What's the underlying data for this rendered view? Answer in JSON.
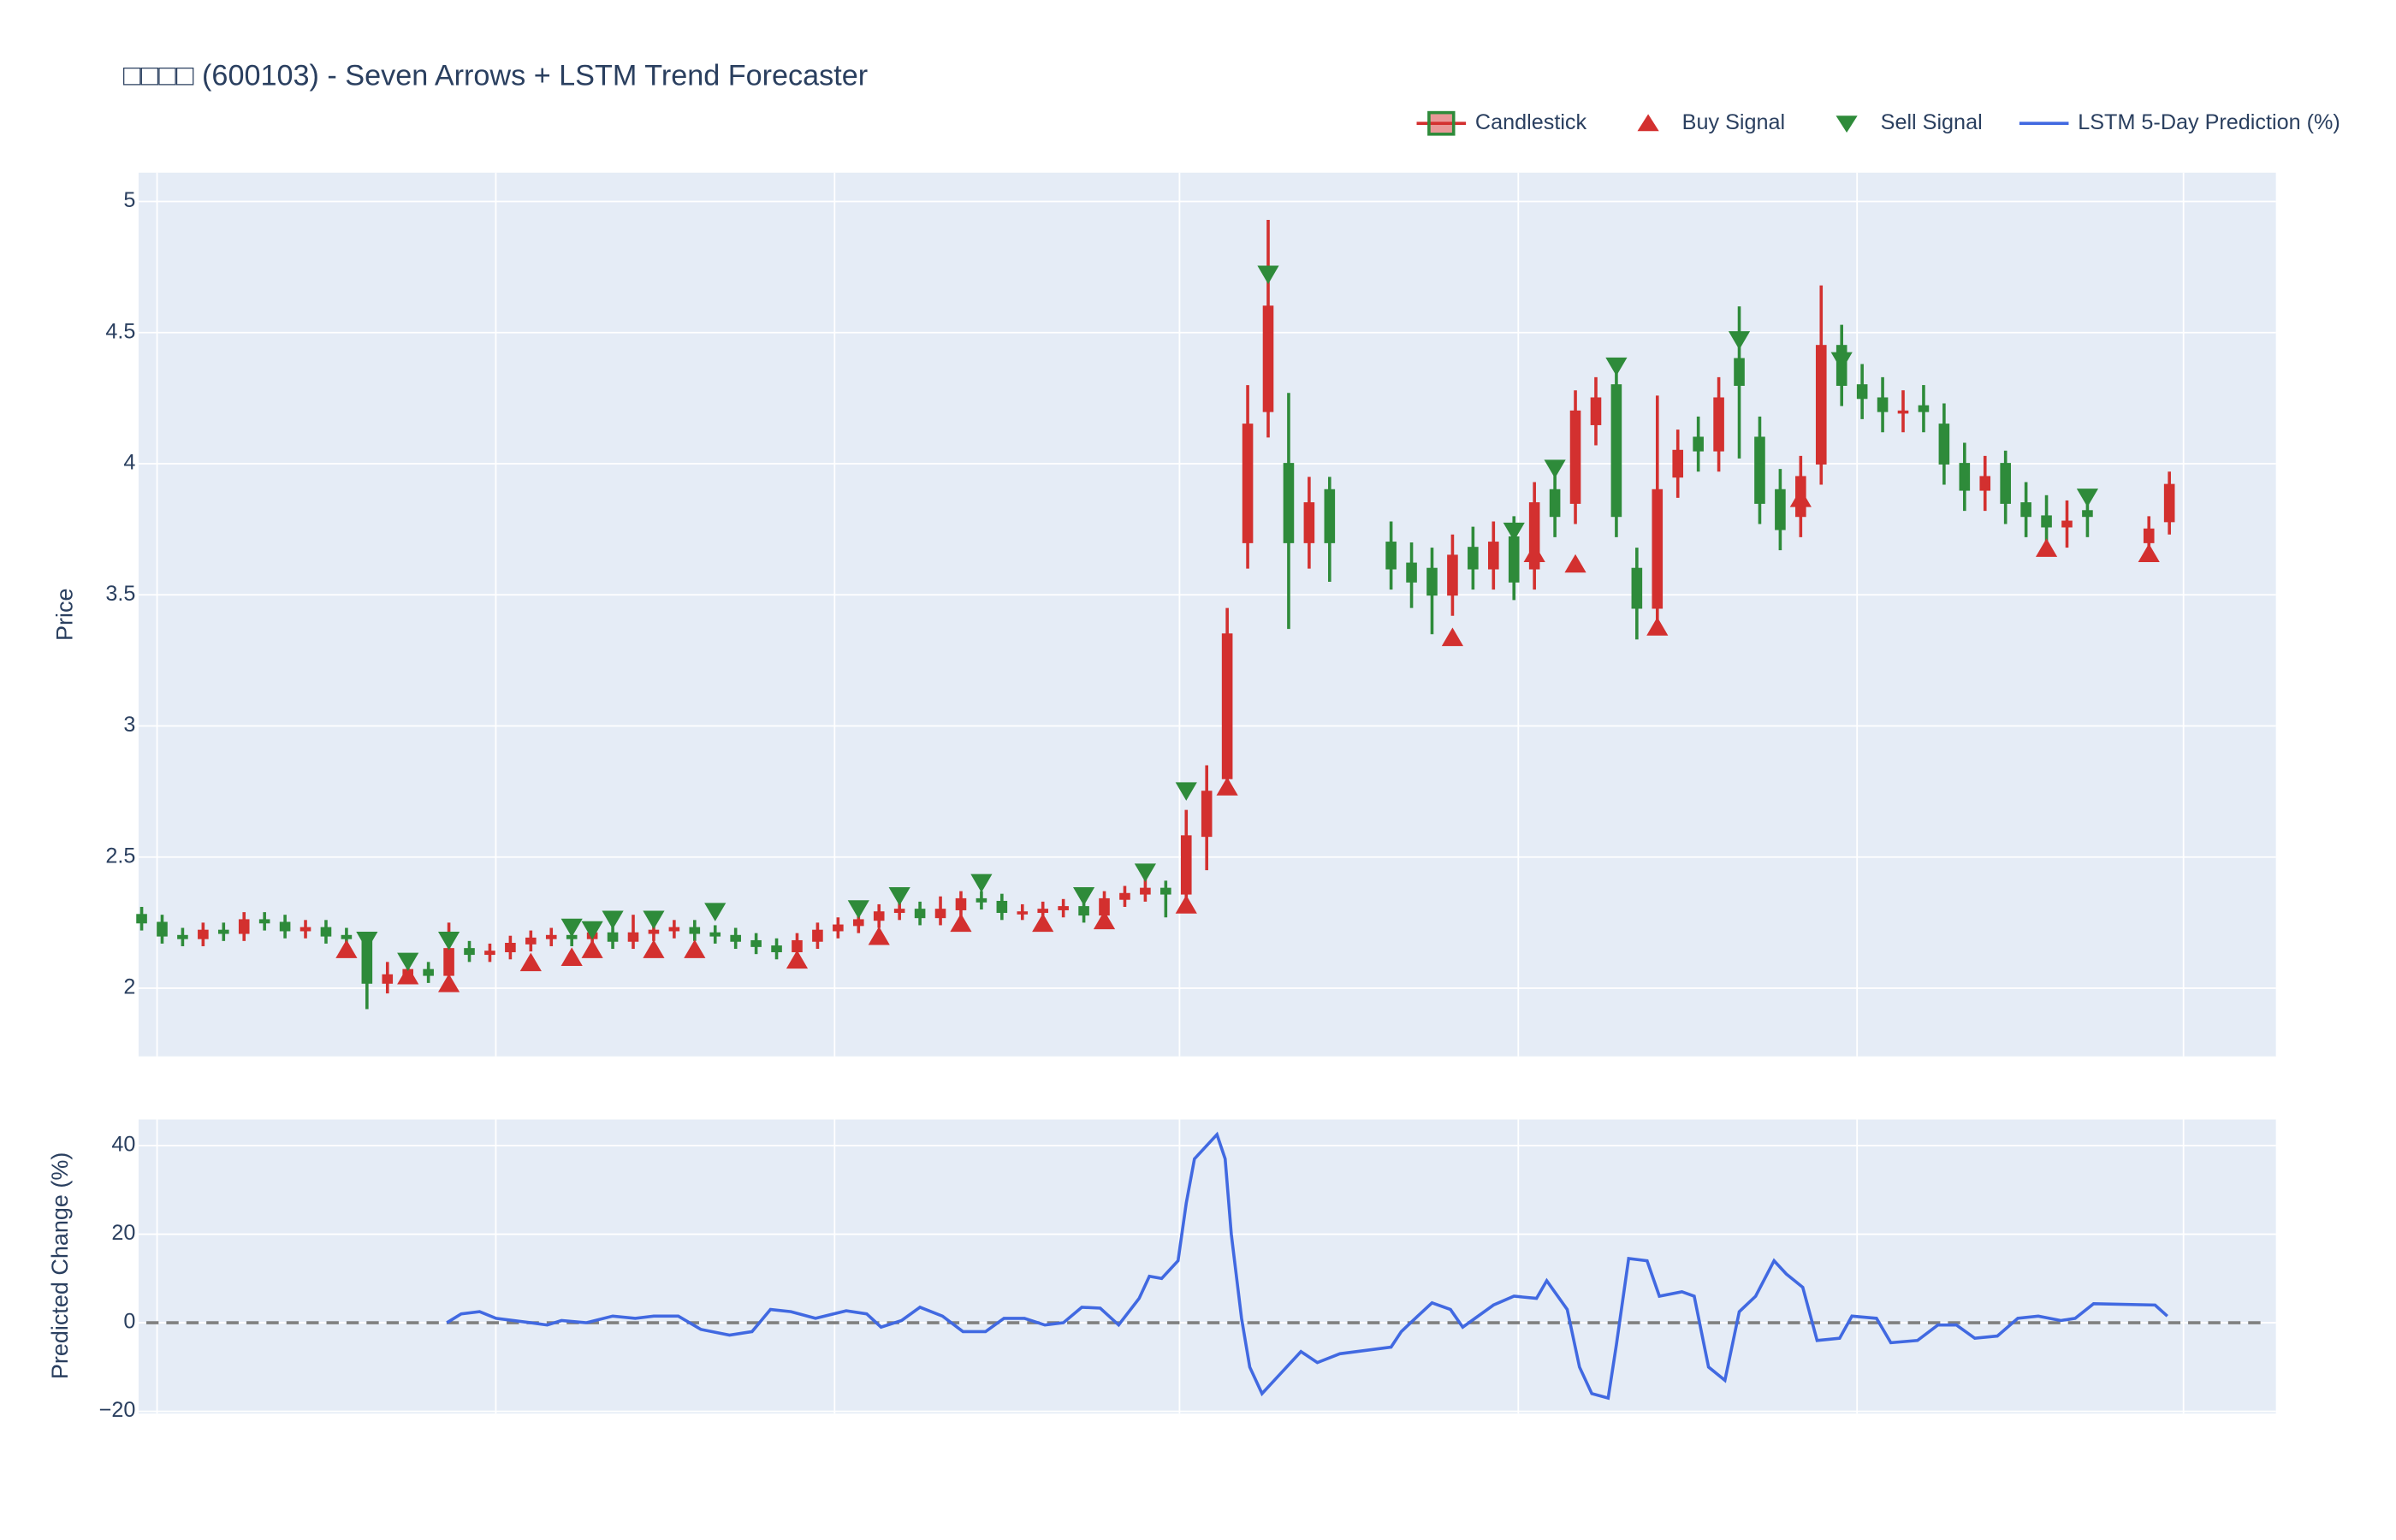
{
  "chart_data": [
    {
      "type": "candlestick",
      "title": "□□□□ (600103) - Seven Arrows + LSTM Trend Forecaster",
      "y_label": "Price",
      "name": "Candlestick",
      "increasing_color": "#d3302f",
      "decreasing_color": "#2e8b3a",
      "xlim": [
        -0.15,
        104.2
      ],
      "ylim": [
        1.74,
        5.11
      ],
      "yticks": [
        2,
        2.5,
        3,
        3.5,
        4,
        4.5,
        5
      ],
      "grid": true,
      "legend": "top-right",
      "open": [
        2.28,
        2.25,
        2.2,
        2.19,
        2.22,
        2.21,
        2.26,
        2.25,
        2.22,
        2.23,
        2.2,
        2.19,
        2.02,
        2.05,
        2.07,
        2.05,
        2.15,
        2.13,
        2.14,
        2.17,
        2.19,
        2.2,
        2.19,
        2.21,
        2.18,
        2.21,
        2.22,
        2.23,
        2.21,
        2.2,
        2.18,
        2.16,
        2.14,
        2.18,
        2.22,
        2.24,
        2.26,
        2.29,
        2.3,
        2.27,
        2.3,
        2.34,
        2.33,
        2.29,
        2.29,
        2.3,
        2.31,
        2.28,
        2.34,
        2.36,
        2.38,
        2.36,
        2.58,
        2.8,
        3.7,
        4.2,
        4.0,
        3.7,
        3.9,
        null,
        null,
        3.7,
        3.62,
        3.6,
        3.5,
        3.68,
        3.6,
        3.72,
        3.6,
        3.9,
        3.85,
        4.15,
        4.3,
        3.6,
        3.45,
        3.95,
        4.1,
        4.05,
        4.4,
        4.1,
        3.9,
        3.8,
        4.0,
        4.45,
        4.3,
        4.25,
        4.2,
        4.22,
        4.15,
        4.0,
        3.9,
        4.0,
        3.85,
        3.8,
        3.76,
        3.82,
        null,
        null,
        3.7,
        3.78
      ],
      "high": [
        2.31,
        2.28,
        2.23,
        2.25,
        2.25,
        2.29,
        2.29,
        2.28,
        2.26,
        2.26,
        2.23,
        2.2,
        2.1,
        2.1,
        2.1,
        2.25,
        2.18,
        2.17,
        2.2,
        2.22,
        2.23,
        2.23,
        2.24,
        2.26,
        2.28,
        2.24,
        2.26,
        2.26,
        2.24,
        2.23,
        2.21,
        2.19,
        2.21,
        2.25,
        2.27,
        2.29,
        2.32,
        2.33,
        2.33,
        2.35,
        2.37,
        2.37,
        2.36,
        2.32,
        2.33,
        2.34,
        2.34,
        2.37,
        2.39,
        2.42,
        2.41,
        2.68,
        2.85,
        3.45,
        4.3,
        4.93,
        4.27,
        3.95,
        3.95,
        null,
        null,
        3.78,
        3.7,
        3.68,
        3.73,
        3.76,
        3.78,
        3.8,
        3.93,
        3.98,
        4.28,
        4.33,
        4.38,
        3.68,
        4.26,
        4.13,
        4.18,
        4.33,
        4.6,
        4.18,
        3.98,
        4.03,
        4.68,
        4.53,
        4.38,
        4.33,
        4.28,
        4.3,
        4.23,
        4.08,
        4.03,
        4.05,
        3.93,
        3.88,
        3.86,
        3.88,
        null,
        null,
        3.8,
        3.97
      ],
      "low": [
        2.22,
        2.17,
        2.16,
        2.16,
        2.18,
        2.18,
        2.22,
        2.19,
        2.19,
        2.17,
        2.16,
        1.92,
        1.98,
        2.02,
        2.02,
        2.02,
        2.1,
        2.1,
        2.11,
        2.14,
        2.16,
        2.16,
        2.16,
        2.15,
        2.15,
        2.18,
        2.19,
        2.18,
        2.17,
        2.15,
        2.13,
        2.11,
        2.11,
        2.15,
        2.19,
        2.21,
        2.23,
        2.26,
        2.24,
        2.24,
        2.27,
        2.3,
        2.26,
        2.26,
        2.26,
        2.27,
        2.25,
        2.25,
        2.31,
        2.33,
        2.27,
        2.32,
        2.45,
        2.75,
        3.6,
        4.1,
        3.37,
        3.6,
        3.55,
        null,
        null,
        3.52,
        3.45,
        3.35,
        3.42,
        3.52,
        3.52,
        3.48,
        3.52,
        3.72,
        3.77,
        4.07,
        3.72,
        3.33,
        3.37,
        3.87,
        3.97,
        3.97,
        4.02,
        3.77,
        3.67,
        3.72,
        3.92,
        4.22,
        4.17,
        4.12,
        4.12,
        4.12,
        3.92,
        3.82,
        3.82,
        3.77,
        3.72,
        3.68,
        3.68,
        3.72,
        null,
        null,
        3.65,
        3.73
      ],
      "close": [
        2.25,
        2.2,
        2.19,
        2.22,
        2.21,
        2.26,
        2.25,
        2.22,
        2.23,
        2.2,
        2.19,
        2.02,
        2.05,
        2.07,
        2.05,
        2.15,
        2.13,
        2.14,
        2.17,
        2.19,
        2.2,
        2.19,
        2.21,
        2.18,
        2.21,
        2.22,
        2.23,
        2.21,
        2.2,
        2.18,
        2.16,
        2.14,
        2.18,
        2.22,
        2.24,
        2.26,
        2.29,
        2.3,
        2.27,
        2.3,
        2.34,
        2.33,
        2.29,
        2.29,
        2.3,
        2.31,
        2.28,
        2.34,
        2.36,
        2.38,
        2.36,
        2.58,
        2.75,
        3.35,
        4.15,
        4.6,
        3.7,
        3.85,
        3.7,
        null,
        null,
        3.6,
        3.55,
        3.5,
        3.65,
        3.6,
        3.7,
        3.55,
        3.85,
        3.8,
        4.2,
        4.25,
        3.8,
        3.45,
        3.9,
        4.05,
        4.05,
        4.25,
        4.3,
        3.85,
        3.75,
        3.95,
        4.45,
        4.3,
        4.25,
        4.2,
        4.2,
        4.2,
        4.0,
        3.9,
        3.95,
        3.85,
        3.8,
        3.76,
        3.78,
        3.8,
        null,
        null,
        3.75,
        3.92
      ],
      "markers": [
        {
          "name": "Buy Signal",
          "color": "#d3302f",
          "symbol": "triangle-up",
          "x": [
            10,
            13,
            15,
            19,
            21,
            22,
            25,
            27,
            32,
            36,
            40,
            44,
            47,
            51,
            53,
            64,
            68,
            70,
            74,
            81,
            93,
            98
          ],
          "values": [
            2.15,
            2.05,
            2.02,
            2.1,
            2.12,
            2.15,
            2.15,
            2.15,
            2.11,
            2.2,
            2.25,
            2.25,
            2.26,
            2.32,
            2.77,
            3.34,
            3.66,
            3.62,
            3.38,
            3.87,
            3.68,
            3.66
          ]
        },
        {
          "name": "Sell Signal",
          "color": "#2e8b3a",
          "symbol": "triangle-down",
          "x": [
            11,
            13,
            15,
            21,
            22,
            23,
            25,
            28,
            35,
            37,
            41,
            46,
            49,
            51,
            55,
            67,
            69,
            72,
            78,
            83,
            95
          ],
          "values": [
            2.18,
            2.1,
            2.18,
            2.23,
            2.22,
            2.26,
            2.26,
            2.29,
            2.3,
            2.35,
            2.4,
            2.35,
            2.44,
            2.75,
            4.72,
            3.74,
            3.98,
            4.37,
            4.47,
            4.39,
            3.87
          ]
        }
      ]
    },
    {
      "type": "line",
      "y_label": "Predicted Change (%)",
      "xlim": [
        -0.15,
        104.2
      ],
      "ylim": [
        -20.5,
        45.9
      ],
      "yticks": [
        {
          "value": -20,
          "label": "−20"
        },
        0,
        20,
        40
      ],
      "grid": true,
      "hline": 0,
      "series": [
        {
          "name": "LSTM 5-Day Prediction (%)",
          "color": "#4169e1",
          "x": [
            14.9,
            15.6,
            16.5,
            17.3,
            19.0,
            19.8,
            20.5,
            21.7,
            23.0,
            24.1,
            25.0,
            26.2,
            27.3,
            28.7,
            29.8,
            30.7,
            31.7,
            32.9,
            34.4,
            35.4,
            36.1,
            37.1,
            38.0,
            39.1,
            40.1,
            41.2,
            42.1,
            43.1,
            44.1,
            45.0,
            45.9,
            46.8,
            47.7,
            48.7,
            49.2,
            49.8,
            50.6,
            51.0,
            51.4,
            52.5,
            52.9,
            53.2,
            53.7,
            54.1,
            54.7,
            55.5,
            56.6,
            57.4,
            58.5,
            61.0,
            61.5,
            62.3,
            63.0,
            63.9,
            64.5,
            65.1,
            66.0,
            67.0,
            68.1,
            68.6,
            69.6,
            70.2,
            70.8,
            71.6,
            72.0,
            72.6,
            73.5,
            74.1,
            75.2,
            75.8,
            76.5,
            77.3,
            78.0,
            78.8,
            79.7,
            80.3,
            81.1,
            81.8,
            82.9,
            83.5,
            84.7,
            85.4,
            86.7,
            87.7,
            88.6,
            89.5,
            90.6,
            91.6,
            92.6,
            93.7,
            94.4,
            95.3,
            98.3,
            98.9
          ],
          "values": [
            0,
            2,
            2.5,
            1,
            0,
            -0.5,
            0.5,
            0,
            1.5,
            1,
            1.5,
            1.5,
            -1.5,
            -2.8,
            -2,
            3,
            2.5,
            1,
            2.7,
            2,
            -1,
            0.5,
            3.5,
            1.5,
            -2,
            -2,
            1,
            1,
            -0.5,
            0,
            3.5,
            3.3,
            -0.5,
            5.5,
            10.5,
            10,
            14,
            27,
            37,
            42.5,
            37,
            20,
            1,
            -10,
            -16,
            -12,
            -6.5,
            -9,
            -7,
            -5.5,
            -2,
            1.5,
            4.5,
            3,
            -1,
            1,
            4,
            6,
            5.5,
            9.5,
            3,
            -10,
            -16,
            -17,
            -5,
            14.5,
            14,
            6,
            7,
            6,
            -10,
            -13,
            2.5,
            6,
            14,
            11,
            8,
            -4,
            -3.5,
            1.5,
            1,
            -4.5,
            -4,
            -0.5,
            -0.5,
            -3.5,
            -3,
            1,
            1.5,
            0.5,
            1,
            4.3,
            4,
            1.5
          ]
        }
      ]
    }
  ]
}
